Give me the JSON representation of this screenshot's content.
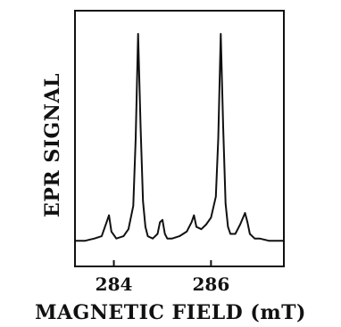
{
  "chart_data": {
    "type": "line",
    "xlabel": "MAGNETIC FIELD (mT)",
    "ylabel": "EPR SIGNAL",
    "xlim": [
      283.2,
      287.5
    ],
    "ylim": [
      0,
      1
    ],
    "x_ticks": [
      284,
      286
    ],
    "x_tick_labels": [
      "284",
      "286"
    ],
    "grid": false,
    "series": [
      {
        "x": [
          283.2,
          283.4,
          283.6,
          283.75,
          283.85,
          283.9,
          283.95,
          284.05,
          284.2,
          284.3,
          284.4,
          284.45,
          284.5,
          284.55,
          284.6,
          284.65,
          284.7,
          284.8,
          284.9,
          284.95,
          285.0,
          285.05,
          285.1,
          285.2,
          285.35,
          285.5,
          285.6,
          285.65,
          285.7,
          285.8,
          285.9,
          286.0,
          286.1,
          286.15,
          286.2,
          286.25,
          286.3,
          286.35,
          286.4,
          286.5,
          286.6,
          286.7,
          286.75,
          286.8,
          286.9,
          287.0,
          287.2,
          287.5
        ],
        "y": [
          0.11,
          0.11,
          0.12,
          0.13,
          0.19,
          0.22,
          0.15,
          0.12,
          0.13,
          0.16,
          0.26,
          0.55,
          1.0,
          0.6,
          0.28,
          0.17,
          0.13,
          0.12,
          0.14,
          0.19,
          0.2,
          0.14,
          0.12,
          0.12,
          0.13,
          0.15,
          0.19,
          0.22,
          0.17,
          0.16,
          0.18,
          0.21,
          0.3,
          0.55,
          1.0,
          0.6,
          0.27,
          0.17,
          0.14,
          0.14,
          0.18,
          0.23,
          0.19,
          0.14,
          0.12,
          0.12,
          0.11,
          0.11
        ]
      }
    ]
  }
}
